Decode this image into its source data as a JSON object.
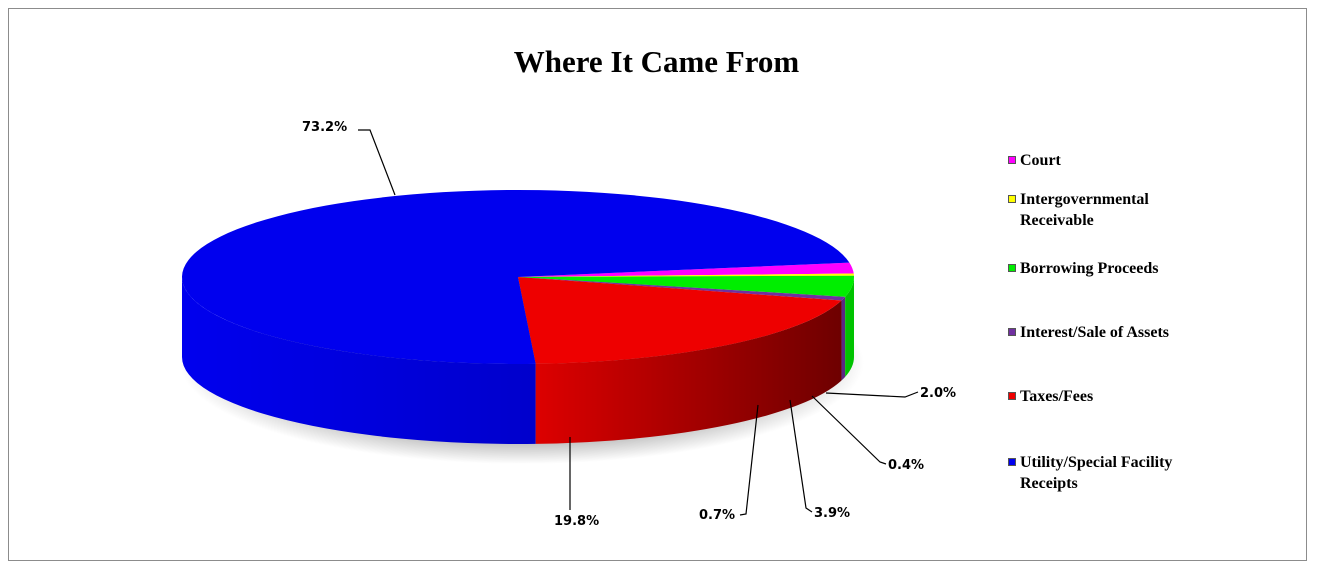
{
  "chart_data": {
    "type": "pie",
    "title": "Where It Came From",
    "categories": [
      "Court",
      "Intergovernmental\nReceivable",
      "Borrowing Proceeds",
      "Interest/Sale of Assets",
      "Taxes/Fees",
      "Utility/Special Facility\nReceipts"
    ],
    "values": [
      2.0,
      0.4,
      3.9,
      0.7,
      19.8,
      73.2
    ],
    "labels": [
      "2.0%",
      "0.4%",
      "3.9%",
      "0.7%",
      "19.8%",
      "73.2%"
    ],
    "colors": [
      "#ff00ff",
      "#ffff00",
      "#00ee00",
      "#7030a0",
      "#ee0000",
      "#0000ee"
    ],
    "legend_position": "right",
    "style": "3d"
  }
}
